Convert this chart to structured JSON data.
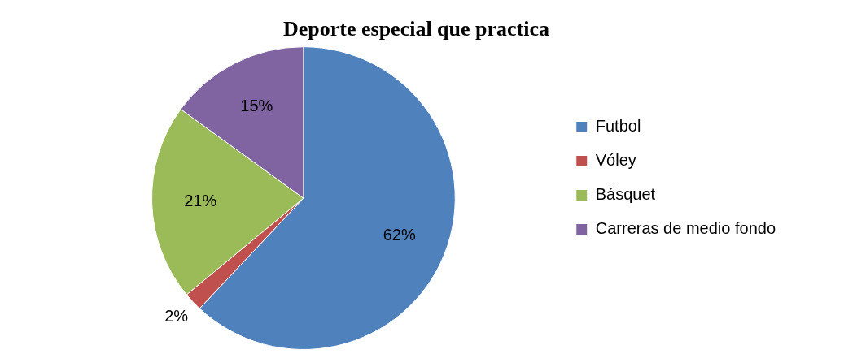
{
  "chart_data": {
    "type": "pie",
    "title": "Deporte especial que practica",
    "categories": [
      "Futbol",
      "Vóley",
      "Básquet",
      "Carreras de medio fondo"
    ],
    "values": [
      62,
      2,
      21,
      15
    ],
    "colors": [
      "#4f81bd",
      "#c0504d",
      "#9bbb59",
      "#8064a2"
    ],
    "value_labels": [
      "62%",
      "2%",
      "21%",
      "15%"
    ],
    "legend": "right"
  }
}
